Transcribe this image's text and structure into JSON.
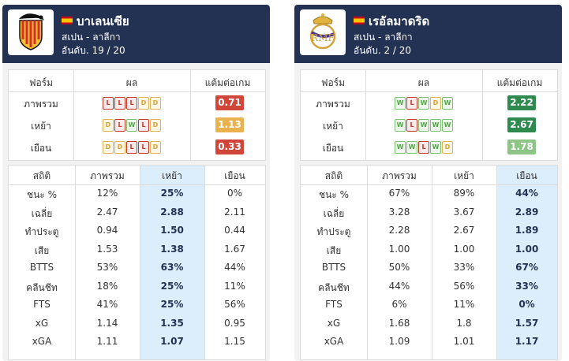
{
  "teams": [
    {
      "name": "บาเลนเซีย",
      "league": "สเปน - ลาลีกา",
      "rank": "อันดับ. 19 / 20",
      "logo": "valencia-crest",
      "form_headers": [
        "ฟอร์ม",
        "ผล",
        "แต้มต่อเกม"
      ],
      "form_rows": [
        {
          "label": "ภาพรวม",
          "results": [
            "L",
            "L",
            "L",
            "D",
            "D"
          ],
          "ppg": "0.71",
          "ppg_color": "#d0473a"
        },
        {
          "label": "เหย้า",
          "results": [
            "D",
            "L",
            "W",
            "L",
            "D"
          ],
          "ppg": "1.13",
          "ppg_color": "#e9b24f"
        },
        {
          "label": "เยือน",
          "results": [
            "D",
            "D",
            "L",
            "L",
            "D"
          ],
          "ppg": "0.33",
          "ppg_color": "#d0473a"
        }
      ],
      "stats_headers": [
        "สถิติ",
        "ภาพรวม",
        "เหย้า",
        "เยือน"
      ],
      "highlight_col": 2,
      "stats_rows": [
        [
          "ชนะ %",
          "12%",
          "25%",
          "0%"
        ],
        [
          "เฉลี่ย",
          "2.47",
          "2.88",
          "2.11"
        ],
        [
          "ทำประตู",
          "0.94",
          "1.50",
          "0.44"
        ],
        [
          "เสีย",
          "1.53",
          "1.38",
          "1.67"
        ],
        [
          "BTTS",
          "53%",
          "63%",
          "44%"
        ],
        [
          "คลีนชีท",
          "18%",
          "25%",
          "11%"
        ],
        [
          "FTS",
          "41%",
          "25%",
          "56%"
        ],
        [
          "xG",
          "1.14",
          "1.35",
          "0.95"
        ],
        [
          "xGA",
          "1.11",
          "1.07",
          "1.15"
        ]
      ]
    },
    {
      "name": "เรอัลมาดริด",
      "league": "สเปน - ลาลีกา",
      "rank": "อันดับ. 2 / 20",
      "logo": "real-madrid-crest",
      "form_headers": [
        "ฟอร์ม",
        "ผล",
        "แต้มต่อเกม"
      ],
      "form_rows": [
        {
          "label": "ภาพรวม",
          "results": [
            "W",
            "L",
            "W",
            "D",
            "W"
          ],
          "ppg": "2.22",
          "ppg_color": "#2f8a4f"
        },
        {
          "label": "เหย้า",
          "results": [
            "W",
            "L",
            "W",
            "W",
            "W"
          ],
          "ppg": "2.67",
          "ppg_color": "#2f8a4f"
        },
        {
          "label": "เยือน",
          "results": [
            "W",
            "W",
            "L",
            "W",
            "D"
          ],
          "ppg": "1.78",
          "ppg_color": "#8cc585"
        }
      ],
      "stats_headers": [
        "สถิติ",
        "ภาพรวม",
        "เหย้า",
        "เยือน"
      ],
      "highlight_col": 3,
      "stats_rows": [
        [
          "ชนะ %",
          "67%",
          "89%",
          "44%"
        ],
        [
          "เฉลี่ย",
          "3.28",
          "3.67",
          "2.89"
        ],
        [
          "ทำประตู",
          "2.28",
          "2.67",
          "1.89"
        ],
        [
          "เสีย",
          "1.00",
          "1.00",
          "1.00"
        ],
        [
          "BTTS",
          "50%",
          "33%",
          "67%"
        ],
        [
          "คลีนชีท",
          "44%",
          "56%",
          "33%"
        ],
        [
          "FTS",
          "6%",
          "11%",
          "0%"
        ],
        [
          "xG",
          "1.68",
          "1.8",
          "1.57"
        ],
        [
          "xGA",
          "1.09",
          "1.01",
          "1.17"
        ]
      ]
    }
  ],
  "colors": {
    "header_bg": "#233253",
    "highlight_bg": "#dcedfb",
    "highlight_text": "#233253"
  }
}
